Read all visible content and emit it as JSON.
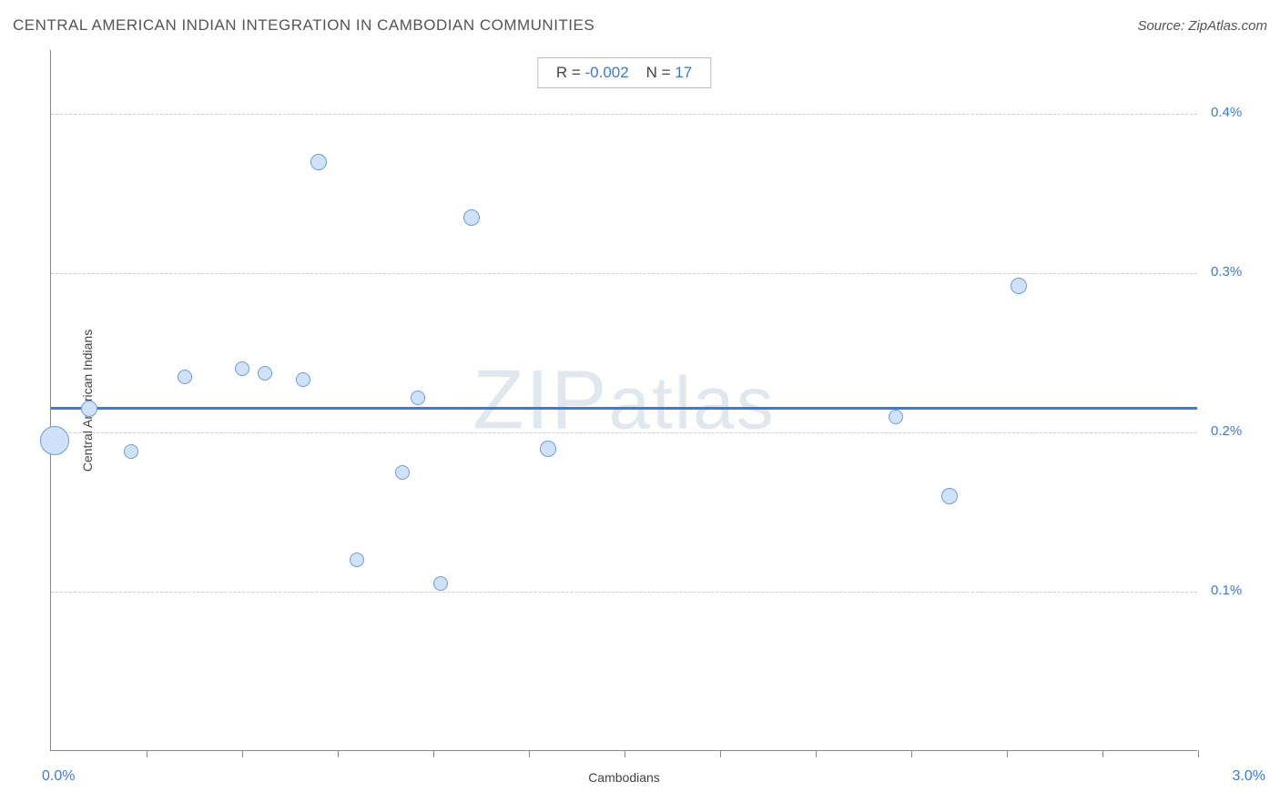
{
  "header": {
    "title": "CENTRAL AMERICAN INDIAN INTEGRATION IN CAMBODIAN COMMUNITIES",
    "source": "Source: ZipAtlas.com"
  },
  "chart": {
    "type": "scatter",
    "xlabel": "Cambodians",
    "ylabel": "Central American Indians",
    "xlim": [
      0.0,
      3.0
    ],
    "ylim": [
      0.0,
      0.44
    ],
    "x_tick_positions": [
      0.25,
      0.5,
      0.75,
      1.0,
      1.25,
      1.5,
      1.75,
      2.0,
      2.25,
      2.5,
      2.75,
      3.0
    ],
    "y_gridlines": [
      0.1,
      0.2,
      0.3,
      0.4
    ],
    "y_tick_labels": [
      "0.1%",
      "0.2%",
      "0.3%",
      "0.4%"
    ],
    "x_min_label": "0.0%",
    "x_max_label": "3.0%",
    "watermark": "ZIPatlas",
    "stats": {
      "r_label": "R = ",
      "r_value": "-0.002",
      "n_label": "N = ",
      "n_value": "17"
    },
    "regression_y": 0.215,
    "background_color": "#ffffff",
    "grid_color": "#cccccc",
    "axis_color": "#888888",
    "point_fill": "#cfe2f9",
    "point_stroke": "#6a9de0",
    "line_color": "#3b78e7",
    "text_color": "#555555",
    "tick_label_color": "#3b78e7",
    "points": [
      {
        "x": 0.01,
        "y": 0.195,
        "size": 32
      },
      {
        "x": 0.1,
        "y": 0.215,
        "size": 18
      },
      {
        "x": 0.21,
        "y": 0.188,
        "size": 16
      },
      {
        "x": 0.35,
        "y": 0.235,
        "size": 16
      },
      {
        "x": 0.5,
        "y": 0.24,
        "size": 16
      },
      {
        "x": 0.56,
        "y": 0.237,
        "size": 16
      },
      {
        "x": 0.66,
        "y": 0.233,
        "size": 16
      },
      {
        "x": 0.7,
        "y": 0.37,
        "size": 18
      },
      {
        "x": 0.8,
        "y": 0.12,
        "size": 16
      },
      {
        "x": 0.92,
        "y": 0.175,
        "size": 16
      },
      {
        "x": 0.96,
        "y": 0.222,
        "size": 16
      },
      {
        "x": 1.02,
        "y": 0.105,
        "size": 16
      },
      {
        "x": 1.1,
        "y": 0.335,
        "size": 18
      },
      {
        "x": 1.3,
        "y": 0.19,
        "size": 18
      },
      {
        "x": 2.21,
        "y": 0.21,
        "size": 16
      },
      {
        "x": 2.35,
        "y": 0.16,
        "size": 18
      },
      {
        "x": 2.53,
        "y": 0.292,
        "size": 18
      }
    ]
  }
}
